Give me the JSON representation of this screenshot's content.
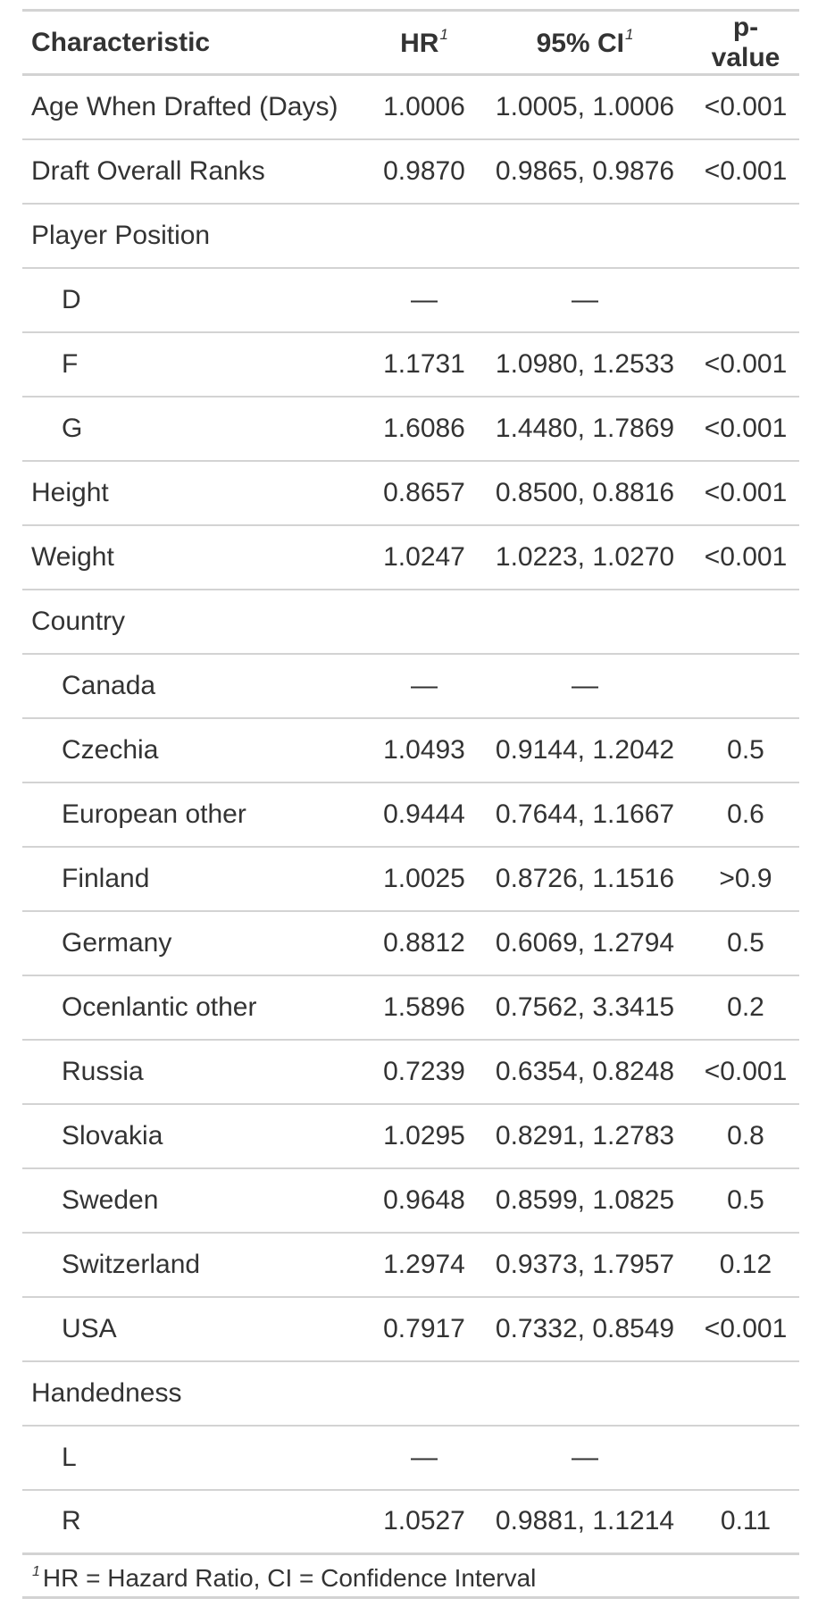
{
  "table": {
    "headers": {
      "characteristic": "Characteristic",
      "hr": "HR",
      "hr_note": "1",
      "ci": "95% CI",
      "ci_note": "1",
      "pvalue": "p-value"
    },
    "rows": [
      {
        "label": "Age When Drafted (Days)",
        "hr": "1.0006",
        "ci": "1.0005, 1.0006",
        "p": "<0.001",
        "indent": false
      },
      {
        "label": "Draft Overall Ranks",
        "hr": "0.9870",
        "ci": "0.9865, 0.9876",
        "p": "<0.001",
        "indent": false
      },
      {
        "label": "Player Position",
        "hr": "",
        "ci": "",
        "p": "",
        "indent": false
      },
      {
        "label": "D",
        "hr": "—",
        "ci": "—",
        "p": "",
        "indent": true
      },
      {
        "label": "F",
        "hr": "1.1731",
        "ci": "1.0980, 1.2533",
        "p": "<0.001",
        "indent": true
      },
      {
        "label": "G",
        "hr": "1.6086",
        "ci": "1.4480, 1.7869",
        "p": "<0.001",
        "indent": true
      },
      {
        "label": "Height",
        "hr": "0.8657",
        "ci": "0.8500, 0.8816",
        "p": "<0.001",
        "indent": false
      },
      {
        "label": "Weight",
        "hr": "1.0247",
        "ci": "1.0223, 1.0270",
        "p": "<0.001",
        "indent": false
      },
      {
        "label": "Country",
        "hr": "",
        "ci": "",
        "p": "",
        "indent": false
      },
      {
        "label": "Canada",
        "hr": "—",
        "ci": "—",
        "p": "",
        "indent": true
      },
      {
        "label": "Czechia",
        "hr": "1.0493",
        "ci": "0.9144, 1.2042",
        "p": "0.5",
        "indent": true
      },
      {
        "label": "European other",
        "hr": "0.9444",
        "ci": "0.7644, 1.1667",
        "p": "0.6",
        "indent": true
      },
      {
        "label": "Finland",
        "hr": "1.0025",
        "ci": "0.8726, 1.1516",
        "p": ">0.9",
        "indent": true
      },
      {
        "label": "Germany",
        "hr": "0.8812",
        "ci": "0.6069, 1.2794",
        "p": "0.5",
        "indent": true
      },
      {
        "label": "Ocenlantic other",
        "hr": "1.5896",
        "ci": "0.7562, 3.3415",
        "p": "0.2",
        "indent": true
      },
      {
        "label": "Russia",
        "hr": "0.7239",
        "ci": "0.6354, 0.8248",
        "p": "<0.001",
        "indent": true
      },
      {
        "label": "Slovakia",
        "hr": "1.0295",
        "ci": "0.8291, 1.2783",
        "p": "0.8",
        "indent": true
      },
      {
        "label": "Sweden",
        "hr": "0.9648",
        "ci": "0.8599, 1.0825",
        "p": "0.5",
        "indent": true
      },
      {
        "label": "Switzerland",
        "hr": "1.2974",
        "ci": "0.9373, 1.7957",
        "p": "0.12",
        "indent": true
      },
      {
        "label": "USA",
        "hr": "0.7917",
        "ci": "0.7332, 0.8549",
        "p": "<0.001",
        "indent": true
      },
      {
        "label": "Handedness",
        "hr": "",
        "ci": "",
        "p": "",
        "indent": false
      },
      {
        "label": "L",
        "hr": "—",
        "ci": "—",
        "p": "",
        "indent": true
      },
      {
        "label": "R",
        "hr": "1.0527",
        "ci": "0.9881, 1.1214",
        "p": "0.11",
        "indent": true
      }
    ],
    "footnote": {
      "mark": "1",
      "text": "HR = Hazard Ratio, CI = Confidence Interval"
    }
  }
}
